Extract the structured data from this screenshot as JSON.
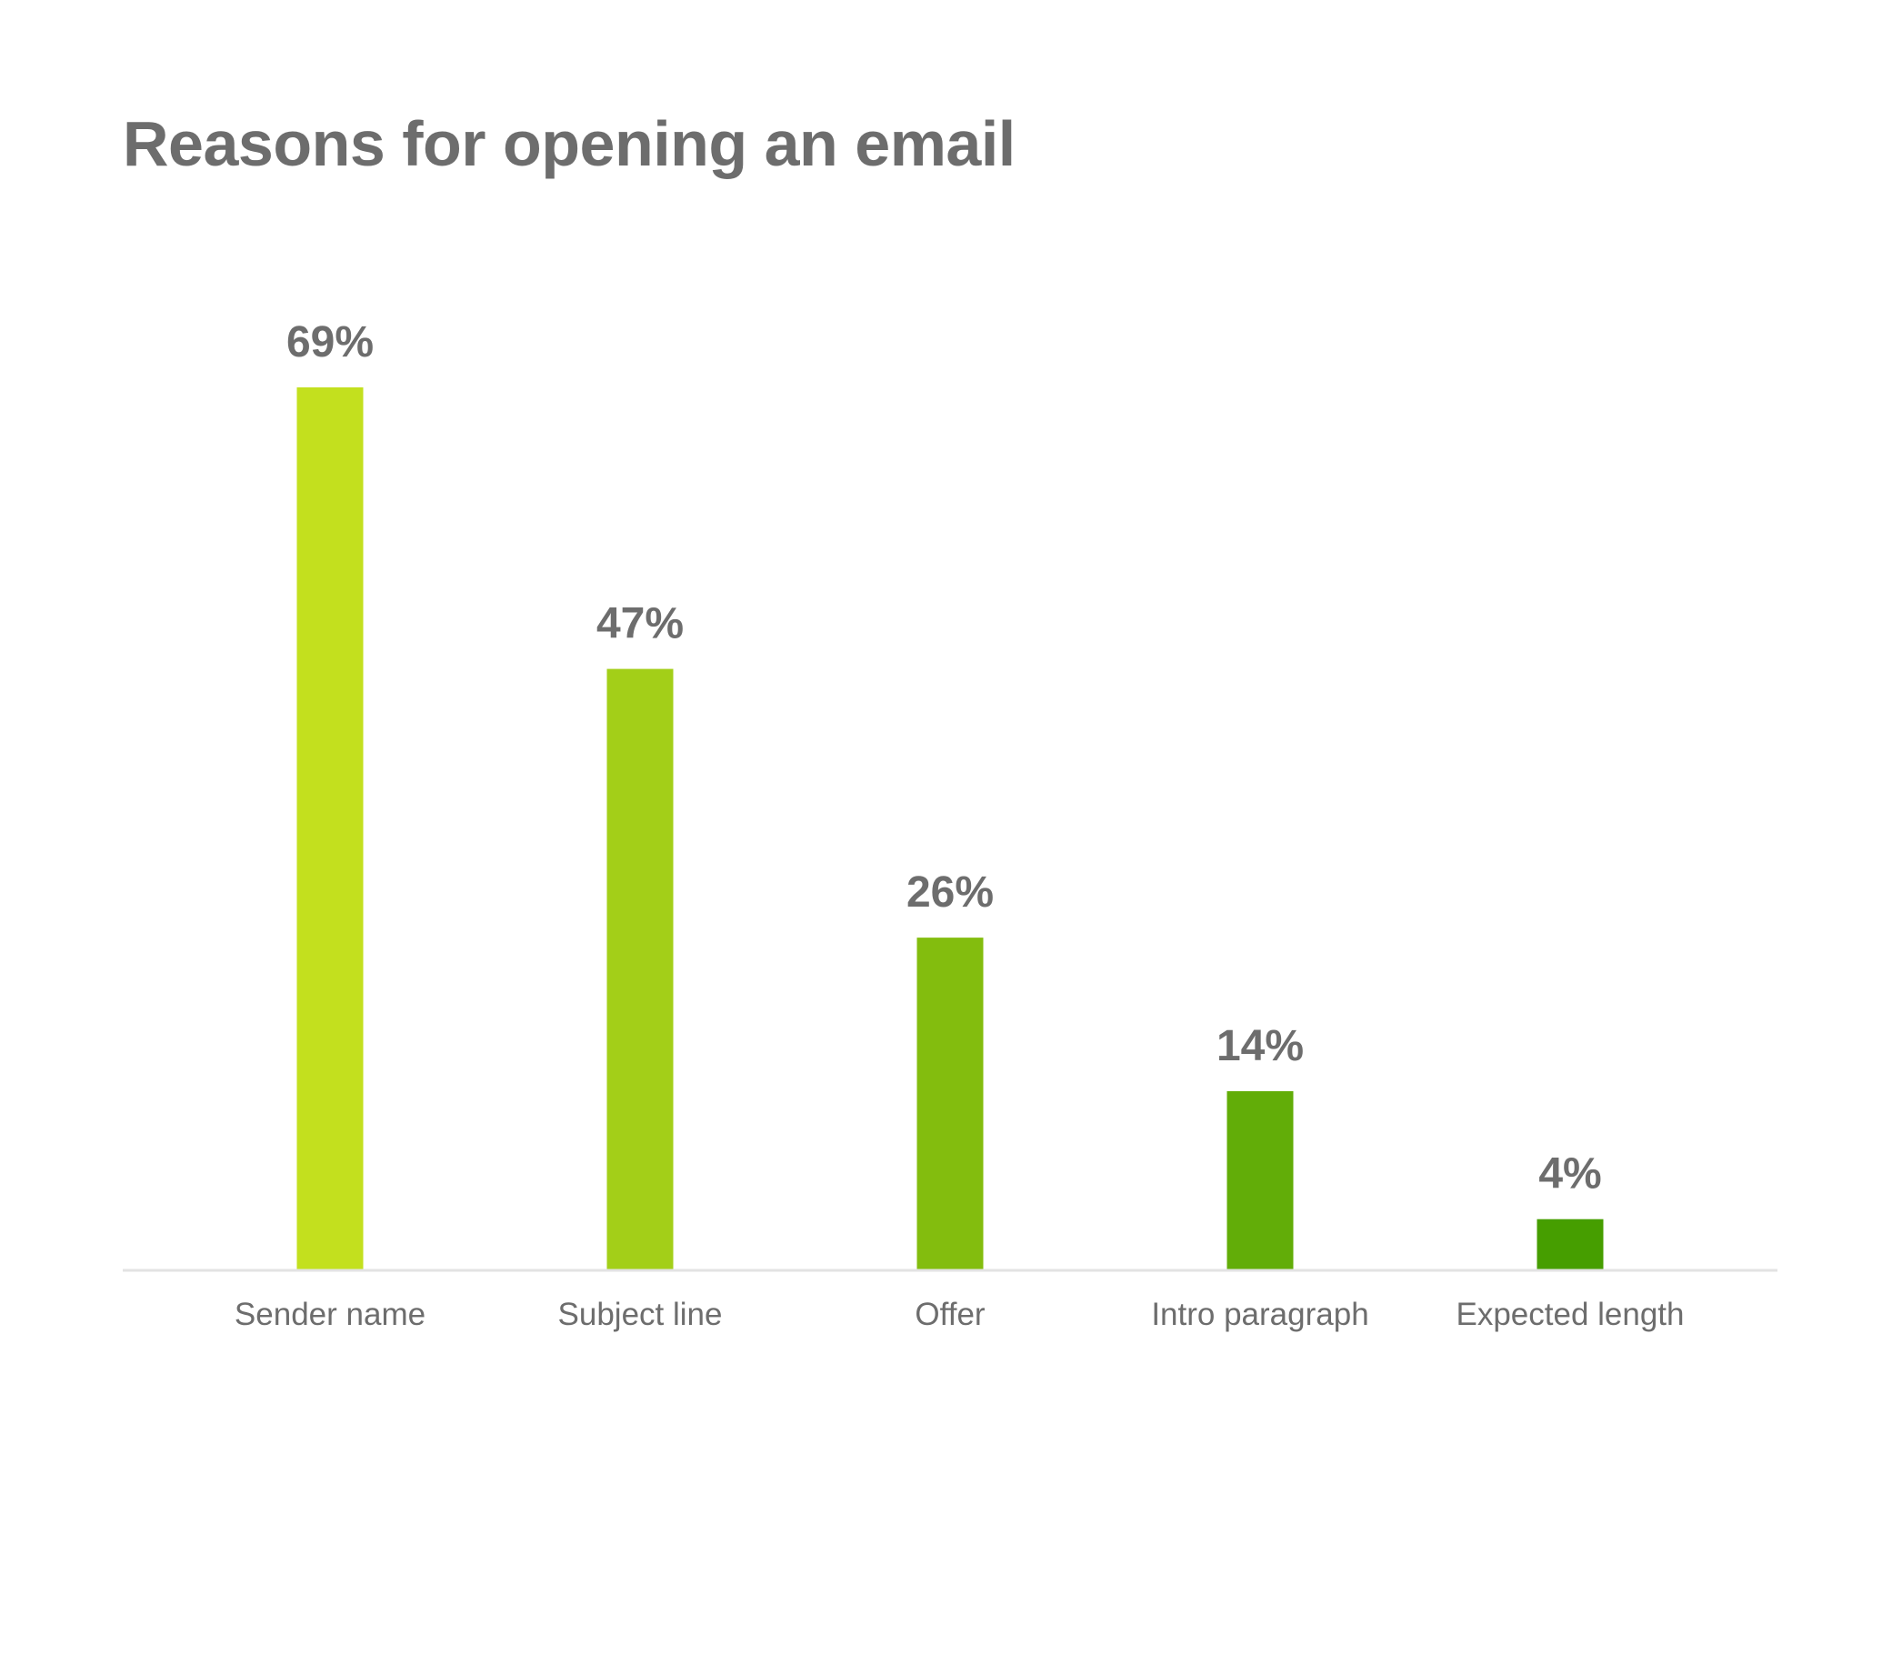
{
  "chart_data": {
    "type": "bar",
    "title": "Reasons for opening an email",
    "categories": [
      "Sender name",
      "Subject line",
      "Offer",
      "Intro paragraph",
      "Expected length"
    ],
    "values": [
      69,
      47,
      26,
      14,
      4
    ],
    "value_labels": [
      "69%",
      "47%",
      "26%",
      "14%",
      "4%"
    ],
    "bar_colors": [
      "#c3e01e",
      "#a3cf18",
      "#83bd0e",
      "#62ad08",
      "#469e00"
    ],
    "ylim": [
      0,
      69
    ],
    "grid": false,
    "legend": "none"
  },
  "colors": {
    "text": "#6d6d6d",
    "baseline": "#e3e3e3",
    "background": "#ffffff"
  }
}
